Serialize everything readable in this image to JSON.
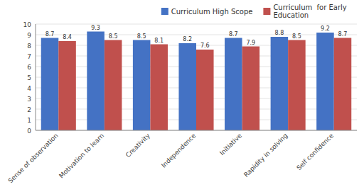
{
  "chart_data": {
    "type": "bar",
    "categories": [
      "Sense of observation",
      "Motivation to learn",
      "Creativity",
      "Independence",
      "Initiative",
      "Rapidity in solving",
      "Self confidence"
    ],
    "series": [
      {
        "name": "Curriculum High Scope",
        "color": "#4472C4",
        "values": [
          8.7,
          9.3,
          8.5,
          8.2,
          8.7,
          8.8,
          9.2
        ]
      },
      {
        "name": "Curriculum  for Early\nEducation",
        "color": "#C0504D",
        "values": [
          8.4,
          8.5,
          8.1,
          7.6,
          7.9,
          8.5,
          8.7
        ]
      }
    ],
    "ylim": [
      0,
      10
    ],
    "yticks": [
      0,
      1,
      2,
      3,
      4,
      5,
      6,
      7,
      8,
      9,
      10
    ],
    "grid": true,
    "legend": "upper right",
    "data_labels": true
  }
}
